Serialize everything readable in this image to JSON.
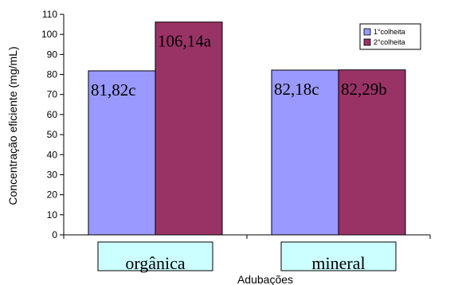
{
  "chart_data": {
    "type": "bar",
    "categories": [
      "orgânica",
      "mineral"
    ],
    "series": [
      {
        "name": "1°colheita",
        "values": [
          81.82,
          82.18
        ],
        "labels": [
          "81,82c",
          "82,18c"
        ],
        "color": "#9999ff"
      },
      {
        "name": "2°colheita",
        "values": [
          106.14,
          82.29
        ],
        "labels": [
          "106,14a",
          "82,29b"
        ],
        "color": "#993366"
      }
    ],
    "xlabel": "Adubações",
    "ylabel": "Concentração eficiente (mg/mL)",
    "ylim": [
      0,
      110
    ],
    "yticks": [
      0,
      10,
      20,
      30,
      40,
      50,
      60,
      70,
      80,
      90,
      100,
      110
    ],
    "grid": false,
    "legend": "top-right",
    "category_box_color": "#ccffff"
  }
}
